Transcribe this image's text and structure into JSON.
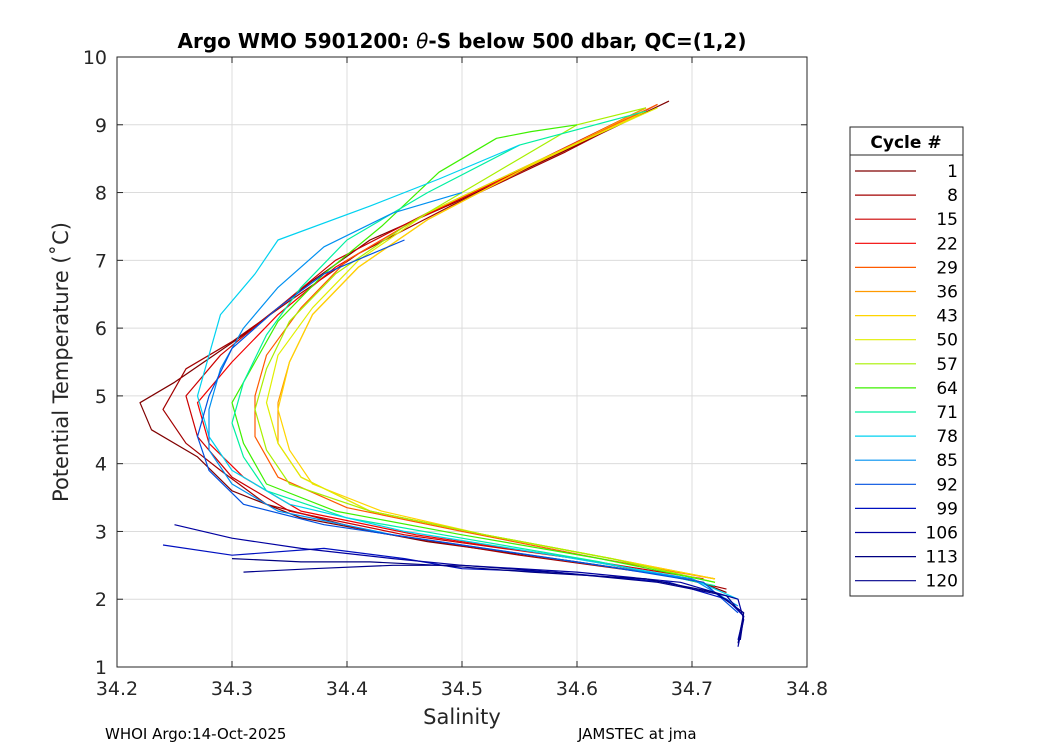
{
  "chart_data": {
    "type": "line",
    "title_prefix": "Argo WMO 5901200: ",
    "title_theta": "θ",
    "title_suffix": "-S below 500 dbar,  QC=(1,2)",
    "xlabel": "Salinity",
    "ylabel": "Potential Temperature (˚C)",
    "xlim": [
      34.2,
      34.8
    ],
    "ylim": [
      1,
      10
    ],
    "x_ticks": [
      "34.2",
      "34.3",
      "34.4",
      "34.5",
      "34.6",
      "34.7",
      "34.8"
    ],
    "y_ticks": [
      "1",
      "2",
      "3",
      "4",
      "5",
      "6",
      "7",
      "8",
      "9",
      "10"
    ],
    "grid": true,
    "legend_title": "Cycle #",
    "legend_position": "right-outside",
    "series": [
      {
        "name": "1",
        "color": "#800000",
        "points": [
          [
            34.68,
            9.35
          ],
          [
            34.6,
            8.7
          ],
          [
            34.5,
            7.9
          ],
          [
            34.42,
            7.3
          ],
          [
            34.37,
            6.7
          ],
          [
            34.31,
            5.9
          ],
          [
            34.25,
            5.2
          ],
          [
            34.22,
            4.9
          ],
          [
            34.23,
            4.5
          ],
          [
            34.27,
            4.1
          ],
          [
            34.3,
            3.6
          ],
          [
            34.36,
            3.2
          ],
          [
            34.47,
            2.85
          ],
          [
            34.6,
            2.55
          ],
          [
            34.7,
            2.3
          ],
          [
            34.73,
            2.1
          ]
        ]
      },
      {
        "name": "8",
        "color": "#a30000",
        "points": [
          [
            34.67,
            9.3
          ],
          [
            34.59,
            8.6
          ],
          [
            34.49,
            7.8
          ],
          [
            34.41,
            7.1
          ],
          [
            34.35,
            6.4
          ],
          [
            34.3,
            5.8
          ],
          [
            34.26,
            5.4
          ],
          [
            34.24,
            4.8
          ],
          [
            34.26,
            4.3
          ],
          [
            34.29,
            3.9
          ],
          [
            34.33,
            3.4
          ],
          [
            34.42,
            3.0
          ],
          [
            34.55,
            2.65
          ],
          [
            34.68,
            2.35
          ],
          [
            34.73,
            2.15
          ]
        ]
      },
      {
        "name": "15",
        "color": "#cc0000",
        "points": [
          [
            34.66,
            9.25
          ],
          [
            34.57,
            8.5
          ],
          [
            34.47,
            7.7
          ],
          [
            34.39,
            7.0
          ],
          [
            34.34,
            6.3
          ],
          [
            34.29,
            5.6
          ],
          [
            34.26,
            5.0
          ],
          [
            34.27,
            4.4
          ],
          [
            34.3,
            3.8
          ],
          [
            34.35,
            3.3
          ],
          [
            34.45,
            2.95
          ],
          [
            34.6,
            2.6
          ],
          [
            34.71,
            2.3
          ]
        ]
      },
      {
        "name": "22",
        "color": "#f20000",
        "points": [
          [
            34.66,
            9.2
          ],
          [
            34.56,
            8.4
          ],
          [
            34.46,
            7.6
          ],
          [
            34.39,
            6.9
          ],
          [
            34.34,
            6.2
          ],
          [
            34.3,
            5.5
          ],
          [
            34.27,
            4.9
          ],
          [
            34.28,
            4.3
          ],
          [
            34.31,
            3.8
          ],
          [
            34.36,
            3.3
          ],
          [
            34.46,
            2.95
          ],
          [
            34.6,
            2.6
          ],
          [
            34.71,
            2.25
          ]
        ]
      },
      {
        "name": "29",
        "color": "#ff5a00",
        "points": [
          [
            34.67,
            9.3
          ],
          [
            34.57,
            8.5
          ],
          [
            34.47,
            7.7
          ],
          [
            34.4,
            7.0
          ],
          [
            34.36,
            6.3
          ],
          [
            34.33,
            5.6
          ],
          [
            34.32,
            5.0
          ],
          [
            34.32,
            4.4
          ],
          [
            34.34,
            3.8
          ],
          [
            34.4,
            3.35
          ],
          [
            34.5,
            3.0
          ],
          [
            34.62,
            2.6
          ],
          [
            34.72,
            2.3
          ]
        ]
      },
      {
        "name": "36",
        "color": "#ff9a00",
        "points": [
          [
            34.66,
            9.25
          ],
          [
            34.56,
            8.4
          ],
          [
            34.47,
            7.6
          ],
          [
            34.41,
            6.9
          ],
          [
            34.37,
            6.2
          ],
          [
            34.35,
            5.5
          ],
          [
            34.34,
            4.9
          ],
          [
            34.34,
            4.3
          ],
          [
            34.36,
            3.8
          ],
          [
            34.42,
            3.3
          ],
          [
            34.52,
            2.95
          ],
          [
            34.63,
            2.6
          ],
          [
            34.72,
            2.3
          ]
        ]
      },
      {
        "name": "43",
        "color": "#ffd400",
        "points": [
          [
            34.66,
            9.2
          ],
          [
            34.56,
            8.4
          ],
          [
            34.47,
            7.6
          ],
          [
            34.41,
            6.9
          ],
          [
            34.37,
            6.2
          ],
          [
            34.35,
            5.5
          ],
          [
            34.34,
            4.8
          ],
          [
            34.35,
            4.2
          ],
          [
            34.37,
            3.7
          ],
          [
            34.43,
            3.3
          ],
          [
            34.52,
            2.95
          ],
          [
            34.63,
            2.6
          ],
          [
            34.72,
            2.3
          ]
        ]
      },
      {
        "name": "50",
        "color": "#e0ef00",
        "points": [
          [
            34.67,
            9.25
          ],
          [
            34.57,
            8.5
          ],
          [
            34.47,
            7.7
          ],
          [
            34.41,
            7.0
          ],
          [
            34.37,
            6.3
          ],
          [
            34.34,
            5.6
          ],
          [
            34.33,
            4.9
          ],
          [
            34.34,
            4.3
          ],
          [
            34.36,
            3.8
          ],
          [
            34.42,
            3.3
          ],
          [
            34.52,
            2.95
          ],
          [
            34.63,
            2.6
          ],
          [
            34.72,
            2.25
          ]
        ]
      },
      {
        "name": "57",
        "color": "#a8f000",
        "points": [
          [
            34.66,
            9.25
          ],
          [
            34.6,
            9.0
          ],
          [
            34.52,
            8.2
          ],
          [
            34.45,
            7.5
          ],
          [
            34.39,
            6.8
          ],
          [
            34.35,
            6.1
          ],
          [
            34.33,
            5.4
          ],
          [
            34.32,
            4.8
          ],
          [
            34.33,
            4.2
          ],
          [
            34.35,
            3.7
          ],
          [
            34.42,
            3.3
          ],
          [
            34.52,
            2.95
          ],
          [
            34.63,
            2.6
          ],
          [
            34.72,
            2.25
          ]
        ]
      },
      {
        "name": "64",
        "color": "#3ef000",
        "points": [
          [
            34.6,
            9.0
          ],
          [
            34.56,
            8.9
          ],
          [
            34.53,
            8.8
          ],
          [
            34.48,
            8.3
          ],
          [
            34.43,
            7.5
          ],
          [
            34.38,
            6.8
          ],
          [
            34.34,
            6.1
          ],
          [
            34.32,
            5.5
          ],
          [
            34.3,
            4.9
          ],
          [
            34.31,
            4.3
          ],
          [
            34.33,
            3.7
          ],
          [
            34.39,
            3.3
          ],
          [
            34.5,
            2.95
          ],
          [
            34.62,
            2.6
          ],
          [
            34.72,
            2.25
          ]
        ]
      },
      {
        "name": "71",
        "color": "#00f0a0",
        "points": [
          [
            34.66,
            9.2
          ],
          [
            34.55,
            8.7
          ],
          [
            34.47,
            8.0
          ],
          [
            34.4,
            7.3
          ],
          [
            34.36,
            6.6
          ],
          [
            34.33,
            5.9
          ],
          [
            34.31,
            5.2
          ],
          [
            34.3,
            4.6
          ],
          [
            34.31,
            4.1
          ],
          [
            34.33,
            3.6
          ],
          [
            34.4,
            3.2
          ],
          [
            34.5,
            2.9
          ],
          [
            34.62,
            2.55
          ],
          [
            34.72,
            2.2
          ]
        ]
      },
      {
        "name": "78",
        "color": "#00d2f0",
        "points": [
          [
            34.55,
            8.7
          ],
          [
            34.48,
            8.2
          ],
          [
            34.42,
            7.8
          ],
          [
            34.34,
            7.3
          ],
          [
            34.32,
            6.8
          ],
          [
            34.29,
            6.2
          ],
          [
            34.28,
            5.6
          ],
          [
            34.27,
            5.0
          ],
          [
            34.28,
            4.4
          ],
          [
            34.3,
            3.9
          ],
          [
            34.35,
            3.4
          ],
          [
            34.45,
            3.0
          ],
          [
            34.58,
            2.65
          ],
          [
            34.7,
            2.3
          ],
          [
            34.74,
            2.0
          ]
        ]
      },
      {
        "name": "85",
        "color": "#0090f0",
        "points": [
          [
            34.5,
            8.0
          ],
          [
            34.44,
            7.7
          ],
          [
            34.38,
            7.2
          ],
          [
            34.34,
            6.6
          ],
          [
            34.31,
            6.0
          ],
          [
            34.29,
            5.4
          ],
          [
            34.28,
            4.8
          ],
          [
            34.28,
            4.2
          ],
          [
            34.3,
            3.7
          ],
          [
            34.34,
            3.3
          ],
          [
            34.44,
            2.95
          ],
          [
            34.58,
            2.6
          ],
          [
            34.7,
            2.3
          ],
          [
            34.74,
            1.9
          ]
        ]
      },
      {
        "name": "92",
        "color": "#0050e0",
        "points": [
          [
            34.45,
            7.3
          ],
          [
            34.38,
            6.8
          ],
          [
            34.34,
            6.3
          ],
          [
            34.3,
            5.7
          ],
          [
            34.28,
            5.0
          ],
          [
            34.27,
            4.4
          ],
          [
            34.28,
            3.9
          ],
          [
            34.31,
            3.4
          ],
          [
            34.38,
            3.1
          ],
          [
            34.5,
            2.8
          ],
          [
            34.62,
            2.5
          ],
          [
            34.71,
            2.25
          ],
          [
            34.74,
            1.8
          ]
        ]
      },
      {
        "name": "99",
        "color": "#0010c0",
        "points": [
          [
            34.24,
            2.8
          ],
          [
            34.3,
            2.65
          ],
          [
            34.38,
            2.75
          ],
          [
            34.45,
            2.6
          ],
          [
            34.5,
            2.45
          ],
          [
            34.58,
            2.4
          ],
          [
            34.68,
            2.25
          ],
          [
            34.73,
            2.0
          ],
          [
            34.745,
            1.75
          ],
          [
            34.74,
            1.4
          ]
        ]
      },
      {
        "name": "106",
        "color": "#0000a0",
        "points": [
          [
            34.25,
            3.1
          ],
          [
            34.3,
            2.9
          ],
          [
            34.36,
            2.75
          ],
          [
            34.44,
            2.6
          ],
          [
            34.5,
            2.5
          ],
          [
            34.6,
            2.4
          ],
          [
            34.69,
            2.25
          ],
          [
            34.74,
            2.0
          ],
          [
            34.745,
            1.7
          ],
          [
            34.74,
            1.3
          ]
        ]
      },
      {
        "name": "113",
        "color": "#000080",
        "points": [
          [
            34.3,
            2.6
          ],
          [
            34.36,
            2.55
          ],
          [
            34.42,
            2.55
          ],
          [
            34.48,
            2.5
          ],
          [
            34.56,
            2.4
          ],
          [
            34.66,
            2.3
          ],
          [
            34.72,
            2.1
          ],
          [
            34.745,
            1.8
          ],
          [
            34.74,
            1.35
          ]
        ]
      },
      {
        "name": "120",
        "color": "#00008c",
        "points": [
          [
            34.31,
            2.4
          ],
          [
            34.37,
            2.45
          ],
          [
            34.44,
            2.5
          ],
          [
            34.5,
            2.5
          ],
          [
            34.58,
            2.4
          ],
          [
            34.67,
            2.25
          ],
          [
            34.73,
            2.05
          ],
          [
            34.745,
            1.75
          ],
          [
            34.742,
            1.4
          ]
        ]
      }
    ]
  },
  "footer": {
    "left": "WHOI Argo:14-Oct-2025",
    "right": "JAMSTEC at jma"
  }
}
